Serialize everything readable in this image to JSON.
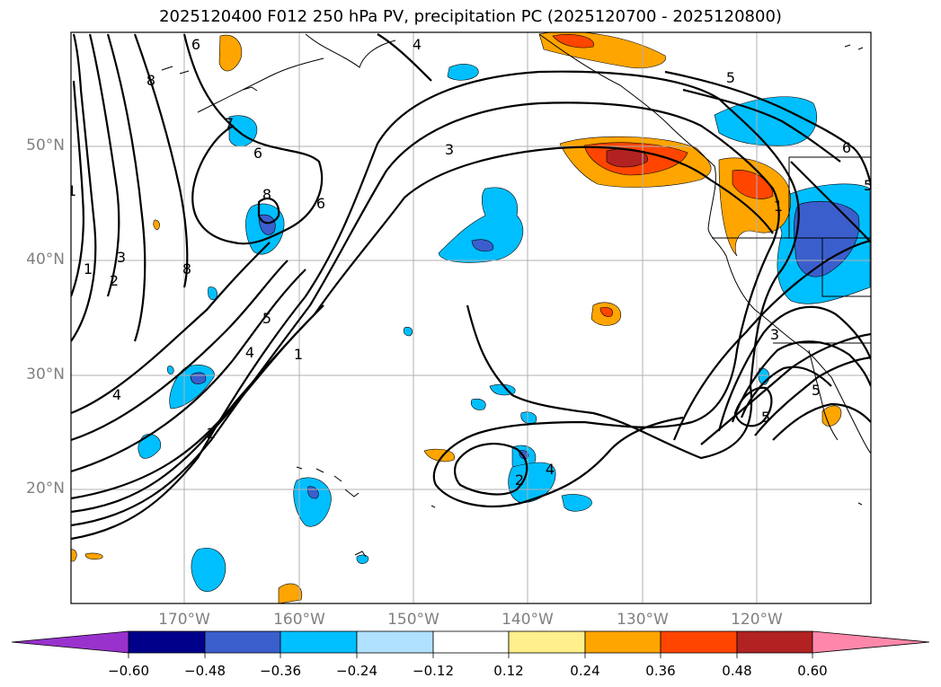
{
  "title": "2025120400 F012 250 hPa PV, precipitation PC (2025120700 - 2025120800)",
  "map": {
    "lat_labels": [
      "50°N",
      "40°N",
      "30°N",
      "20°N"
    ],
    "lon_labels": [
      "170°W",
      "160°W",
      "150°W",
      "140°W",
      "130°W",
      "120°W"
    ],
    "contour_labels": [
      "6",
      "8",
      "4",
      "5",
      "7",
      "6",
      "8",
      "8",
      "3",
      "1",
      "2",
      "4",
      "1",
      "3",
      "6",
      "5",
      "4",
      "1",
      "2",
      "4",
      "2",
      "5",
      "6",
      "5",
      "1",
      "3",
      "5"
    ]
  },
  "colorbar": {
    "ticks": [
      "−0.60",
      "−0.48",
      "−0.36",
      "−0.24",
      "−0.12",
      "0.12",
      "0.24",
      "0.36",
      "0.48",
      "0.60"
    ],
    "colors": [
      "#9932cc",
      "#00008b",
      "#3a5fcd",
      "#00bfff",
      "#b0e2ff",
      "#ffffff",
      "#fff08c",
      "#ffa500",
      "#ff4500",
      "#b22222",
      "#ff88aa"
    ]
  }
}
